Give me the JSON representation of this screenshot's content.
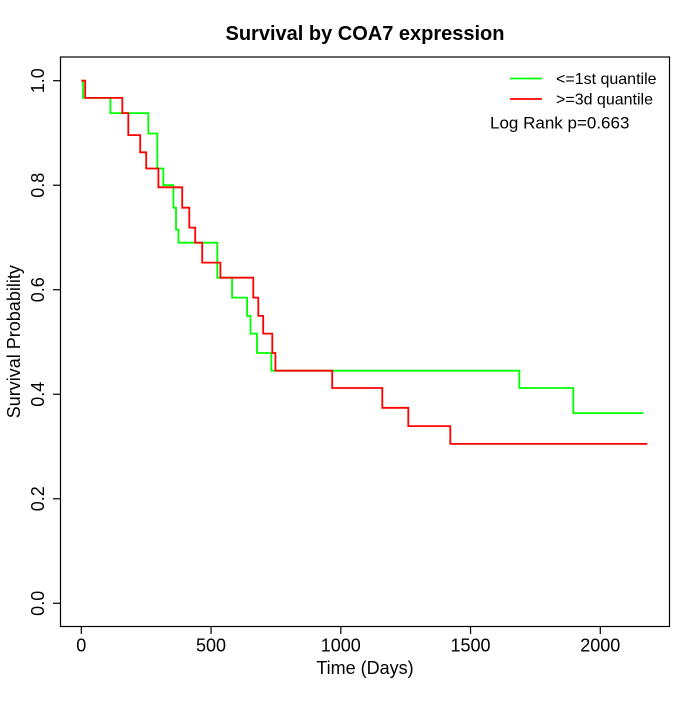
{
  "title": "Survival by COA7 expression",
  "x_axis": {
    "label": "Time (Days)",
    "tick_labels": [
      "0",
      "500",
      "1000",
      "1500",
      "2000"
    ]
  },
  "y_axis": {
    "label": "Survival Probability",
    "tick_labels": [
      "0.0",
      "0.2",
      "0.4",
      "0.6",
      "0.8",
      "1.0"
    ]
  },
  "legend": {
    "entries": [
      {
        "label": "<=1st quantile",
        "color": "#00ff00"
      },
      {
        "label": ">=3d quantile",
        "color": "#ff0000"
      }
    ],
    "note": "Log Rank p=0.663"
  },
  "chart_data": {
    "type": "line",
    "variant": "kaplan-meier-step",
    "title": "Survival by COA7 expression",
    "xlabel": "Time (Days)",
    "ylabel": "Survival Probability",
    "xlim": [
      0,
      2200
    ],
    "ylim": [
      0,
      1
    ],
    "xticks": [
      0,
      500,
      1000,
      1500,
      2000
    ],
    "yticks": [
      0,
      0.2,
      0.4,
      0.6,
      0.8,
      1.0
    ],
    "grid": false,
    "legend_position": "top-right",
    "annotation": "Log Rank p=0.663",
    "series": [
      {
        "name": "<=1st quantile",
        "color": "#00ff00",
        "end_time": 2166,
        "steps": [
          [
            0,
            1.0
          ],
          [
            7,
            0.967
          ],
          [
            112,
            0.938
          ],
          [
            258,
            0.899
          ],
          [
            293,
            0.832
          ],
          [
            316,
            0.8
          ],
          [
            355,
            0.757
          ],
          [
            365,
            0.715
          ],
          [
            374,
            0.69
          ],
          [
            524,
            0.623
          ],
          [
            581,
            0.585
          ],
          [
            639,
            0.55
          ],
          [
            652,
            0.516
          ],
          [
            677,
            0.479
          ],
          [
            732,
            0.445
          ],
          [
            1688,
            0.412
          ],
          [
            1896,
            0.364
          ]
        ]
      },
      {
        "name": ">=3d quantile",
        "color": "#ff0000",
        "end_time": 2181,
        "steps": [
          [
            0,
            1.0
          ],
          [
            15,
            0.967
          ],
          [
            158,
            0.938
          ],
          [
            181,
            0.896
          ],
          [
            227,
            0.863
          ],
          [
            250,
            0.832
          ],
          [
            297,
            0.796
          ],
          [
            389,
            0.757
          ],
          [
            416,
            0.719
          ],
          [
            439,
            0.69
          ],
          [
            466,
            0.652
          ],
          [
            536,
            0.623
          ],
          [
            663,
            0.585
          ],
          [
            682,
            0.55
          ],
          [
            701,
            0.516
          ],
          [
            736,
            0.479
          ],
          [
            748,
            0.445
          ],
          [
            967,
            0.412
          ],
          [
            1160,
            0.374
          ],
          [
            1260,
            0.339
          ],
          [
            1422,
            0.305
          ]
        ]
      }
    ]
  }
}
